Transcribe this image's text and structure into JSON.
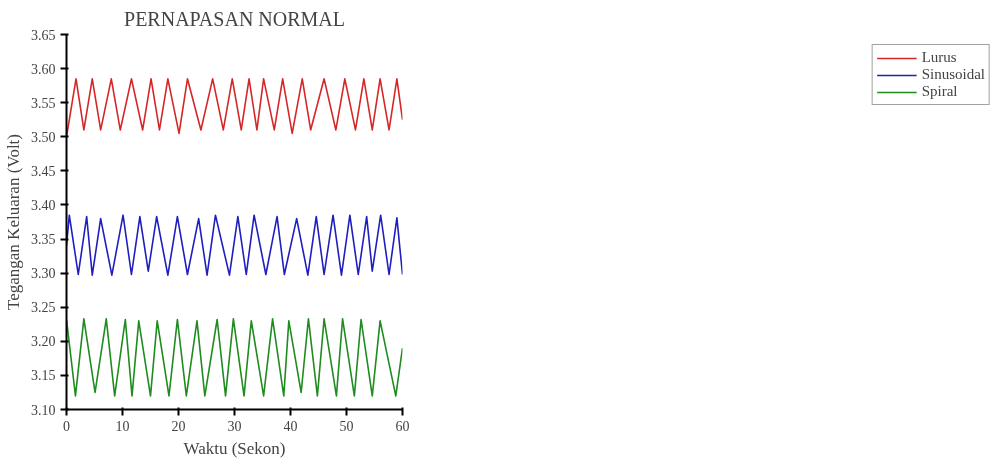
{
  "chart_data": {
    "type": "line",
    "title": "PERNAPASAN NORMAL",
    "xlabel": "Waktu (Sekon)",
    "ylabel": "Tegangan Keluaran (Volt)",
    "xlim": [
      0,
      60
    ],
    "xticks": [
      0,
      10,
      20,
      30,
      40,
      50,
      60
    ],
    "ylim": [
      3.1,
      3.65
    ],
    "yticks": [
      {
        "value": 3.1,
        "label": "3.10"
      },
      {
        "value": 3.15,
        "label": "3.15"
      },
      {
        "value": 3.2,
        "label": "3.20"
      },
      {
        "value": 3.25,
        "label": "3.25"
      },
      {
        "value": 3.3,
        "label": "3.30"
      },
      {
        "value": 3.35,
        "label": "3.35"
      },
      {
        "value": 3.4,
        "label": "3.40"
      },
      {
        "value": 3.45,
        "label": "3.45"
      },
      {
        "value": 3.5,
        "label": "3.50"
      },
      {
        "value": 3.55,
        "label": "3.55"
      },
      {
        "value": 3.6,
        "label": "3.60"
      },
      {
        "value": 3.65,
        "label": "3.65"
      }
    ],
    "grid": false,
    "legend": "top right",
    "marker": "none",
    "line_style": "solid",
    "series": [
      {
        "name": "Lurus",
        "color": "#d62728",
        "x": [
          0,
          1.7,
          3.1,
          4.6,
          6.1,
          8.0,
          9.6,
          11.6,
          13.6,
          15.1,
          16.6,
          18.1,
          20.1,
          21.6,
          24.0,
          26.1,
          28.0,
          29.6,
          31.2,
          32.6,
          34.0,
          35.2,
          37.1,
          38.6,
          40.3,
          42.1,
          43.6,
          46.0,
          48.1,
          49.7,
          51.6,
          53.1,
          54.6,
          56.0,
          57.6,
          59.0,
          60
        ],
        "values": [
          3.5,
          3.585,
          3.51,
          3.585,
          3.51,
          3.585,
          3.51,
          3.585,
          3.51,
          3.585,
          3.51,
          3.585,
          3.505,
          3.585,
          3.51,
          3.585,
          3.51,
          3.585,
          3.51,
          3.585,
          3.51,
          3.585,
          3.51,
          3.585,
          3.505,
          3.585,
          3.51,
          3.585,
          3.51,
          3.585,
          3.51,
          3.585,
          3.51,
          3.585,
          3.51,
          3.585,
          3.525
        ]
      },
      {
        "name": "Sinusoidal",
        "color": "#1f1fbf",
        "x": [
          0,
          0.5,
          2.1,
          3.6,
          4.6,
          6.1,
          8.1,
          10.1,
          11.6,
          13.1,
          14.6,
          16.1,
          18.1,
          19.8,
          21.6,
          23.6,
          25.1,
          26.6,
          29.1,
          30.6,
          32.1,
          33.5,
          35.6,
          37.6,
          38.9,
          41.1,
          43.1,
          44.6,
          46.0,
          47.6,
          49.1,
          50.6,
          52.1,
          53.6,
          54.6,
          56.1,
          57.6,
          59.0,
          60
        ],
        "values": [
          3.34,
          3.385,
          3.298,
          3.383,
          3.297,
          3.38,
          3.297,
          3.385,
          3.298,
          3.383,
          3.303,
          3.383,
          3.297,
          3.383,
          3.298,
          3.38,
          3.297,
          3.385,
          3.297,
          3.383,
          3.298,
          3.385,
          3.298,
          3.383,
          3.298,
          3.38,
          3.297,
          3.383,
          3.298,
          3.385,
          3.297,
          3.385,
          3.298,
          3.383,
          3.303,
          3.385,
          3.298,
          3.381,
          3.298
        ]
      },
      {
        "name": "Spiral",
        "color": "#1e8c1e",
        "x": [
          0,
          1.6,
          3.1,
          5.1,
          7.1,
          8.6,
          10.5,
          11.7,
          12.9,
          15.0,
          16.2,
          18.3,
          19.8,
          21.4,
          23.3,
          24.7,
          26.9,
          28.4,
          29.8,
          31.7,
          33.0,
          35.2,
          36.8,
          38.8,
          39.7,
          41.9,
          43.2,
          44.8,
          46.0,
          48.2,
          49.3,
          51.4,
          52.6,
          54.6,
          56.0,
          58.8,
          60
        ],
        "values": [
          3.232,
          3.12,
          3.233,
          3.125,
          3.233,
          3.12,
          3.232,
          3.12,
          3.23,
          3.12,
          3.23,
          3.12,
          3.232,
          3.12,
          3.23,
          3.12,
          3.232,
          3.12,
          3.233,
          3.12,
          3.23,
          3.12,
          3.233,
          3.12,
          3.23,
          3.125,
          3.233,
          3.12,
          3.233,
          3.12,
          3.233,
          3.12,
          3.232,
          3.12,
          3.23,
          3.12,
          3.19
        ]
      }
    ]
  }
}
